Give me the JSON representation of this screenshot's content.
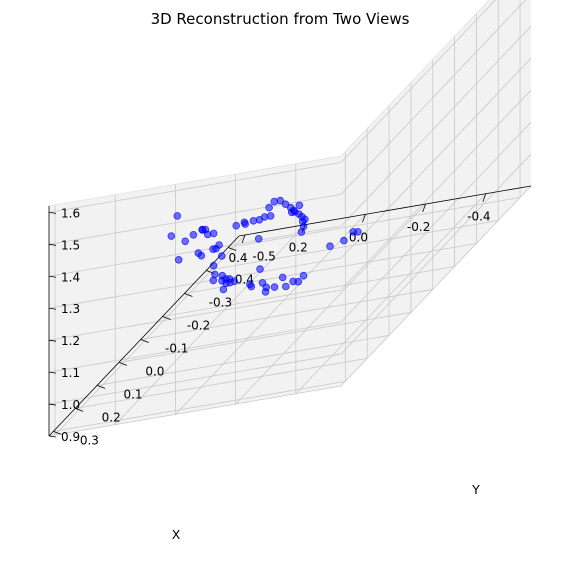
{
  "chart_data": {
    "type": "scatter",
    "projection": "3d",
    "title": "3D Reconstruction from Two Views",
    "xlabel": "X",
    "ylabel": "Y",
    "zlabel": "",
    "xlim": [
      -0.55,
      0.42
    ],
    "ylim": [
      -0.55,
      0.32
    ],
    "zlim": [
      0.9,
      1.62
    ],
    "xticks": [
      -0.4,
      -0.2,
      0.0,
      0.2,
      0.4
    ],
    "yticks": [
      -0.5,
      -0.4,
      -0.3,
      -0.2,
      -0.1,
      0.0,
      0.1,
      0.2,
      0.3
    ],
    "zticks": [
      0.9,
      1.0,
      1.1,
      1.2,
      1.3,
      1.4,
      1.5,
      1.6
    ],
    "grid": true,
    "marker_color": "#0000ff",
    "points": [
      {
        "x": -0.39,
        "y": 0.29,
        "z": 1.47
      },
      {
        "x": -0.36,
        "y": 0.27,
        "z": 1.44
      },
      {
        "x": -0.35,
        "y": 0.27,
        "z": 1.44
      },
      {
        "x": -0.28,
        "y": 0.27,
        "z": 1.44
      },
      {
        "x": -0.26,
        "y": 0.27,
        "z": 1.44
      },
      {
        "x": -0.25,
        "y": 0.28,
        "z": 1.44
      },
      {
        "x": -0.23,
        "y": 0.28,
        "z": 1.44
      },
      {
        "x": -0.21,
        "y": 0.29,
        "z": 1.44
      },
      {
        "x": -0.2,
        "y": 0.28,
        "z": 1.44
      },
      {
        "x": -0.18,
        "y": 0.29,
        "z": 1.44
      },
      {
        "x": -0.12,
        "y": 0.31,
        "z": 1.44
      },
      {
        "x": -0.1,
        "y": 0.31,
        "z": 1.44
      },
      {
        "x": -0.06,
        "y": 0.28,
        "z": 1.44
      },
      {
        "x": 0.03,
        "y": 0.27,
        "z": 1.49
      },
      {
        "x": 0.05,
        "y": 0.27,
        "z": 1.43
      },
      {
        "x": 0.04,
        "y": 0.25,
        "z": 1.34
      },
      {
        "x": 0.06,
        "y": 0.1,
        "z": 1.33
      },
      {
        "x": 0.07,
        "y": 0.1,
        "z": 1.33
      },
      {
        "x": 0.1,
        "y": 0.1,
        "z": 1.32
      },
      {
        "x": 0.12,
        "y": 0.11,
        "z": 1.31
      },
      {
        "x": 0.08,
        "y": 0.01,
        "z": 1.22
      },
      {
        "x": 0.09,
        "y": 0.01,
        "z": 1.21
      },
      {
        "x": 0.1,
        "y": 0.01,
        "z": 1.21
      },
      {
        "x": 0.11,
        "y": 0.05,
        "z": 1.22
      },
      {
        "x": 0.12,
        "y": 0.05,
        "z": 1.23
      },
      {
        "x": 0.1,
        "y": -0.03,
        "z": 1.16
      },
      {
        "x": 0.12,
        "y": -0.02,
        "z": 1.14
      },
      {
        "x": 0.13,
        "y": -0.04,
        "z": 1.1
      },
      {
        "x": 0.12,
        "y": -0.06,
        "z": 1.08
      },
      {
        "x": 0.15,
        "y": -0.06,
        "z": 1.07
      },
      {
        "x": 0.1,
        "y": -0.05,
        "z": 1.06
      },
      {
        "x": 0.05,
        "y": -0.09,
        "z": 1.02
      },
      {
        "x": 0.06,
        "y": -0.11,
        "z": 1.0
      },
      {
        "x": 0.03,
        "y": -0.12,
        "z": 1.0
      },
      {
        "x": 0.01,
        "y": -0.11,
        "z": 0.99
      },
      {
        "x": 0.02,
        "y": -0.12,
        "z": 0.97
      },
      {
        "x": -0.01,
        "y": -0.12,
        "z": 0.98
      },
      {
        "x": -0.04,
        "y": -0.13,
        "z": 0.97
      },
      {
        "x": -0.05,
        "y": -0.15,
        "z": 0.97
      },
      {
        "x": -0.06,
        "y": -0.16,
        "z": 0.96
      },
      {
        "x": -0.07,
        "y": -0.17,
        "z": 0.97
      },
      {
        "x": -0.03,
        "y": -0.13,
        "z": 1.0
      },
      {
        "x": 0.13,
        "y": -0.09,
        "z": 1.05
      },
      {
        "x": 0.15,
        "y": -0.1,
        "z": 1.04
      },
      {
        "x": 0.14,
        "y": -0.12,
        "z": 1.03
      },
      {
        "x": 0.16,
        "y": -0.12,
        "z": 1.0
      },
      {
        "x": 0.16,
        "y": -0.15,
        "z": 1.0
      },
      {
        "x": 0.16,
        "y": -0.17,
        "z": 0.99
      },
      {
        "x": 0.14,
        "y": -0.26,
        "z": 0.96
      },
      {
        "x": -0.15,
        "y": -0.05,
        "z": 1.18
      },
      {
        "x": -0.15,
        "y": -0.06,
        "z": 1.19
      },
      {
        "x": -0.14,
        "y": -0.07,
        "z": 1.2
      },
      {
        "x": -0.14,
        "y": -0.08,
        "z": 1.2
      },
      {
        "x": -0.13,
        "y": -0.08,
        "z": 1.21
      },
      {
        "x": -0.12,
        "y": -0.08,
        "z": 1.22
      },
      {
        "x": -0.11,
        "y": -0.07,
        "z": 1.24
      },
      {
        "x": -0.1,
        "y": -0.07,
        "z": 1.25
      },
      {
        "x": -0.09,
        "y": -0.06,
        "z": 1.27
      },
      {
        "x": -0.08,
        "y": -0.05,
        "z": 1.29
      },
      {
        "x": -0.06,
        "y": -0.05,
        "z": 1.29
      },
      {
        "x": -0.05,
        "y": -0.04,
        "z": 1.28
      },
      {
        "x": -0.03,
        "y": -0.02,
        "z": 1.2
      },
      {
        "x": -0.1,
        "y": -0.25,
        "z": 1.0
      },
      {
        "x": -0.11,
        "y": -0.3,
        "z": 0.98
      },
      {
        "x": -0.12,
        "y": -0.35,
        "z": 0.97
      },
      {
        "x": -0.09,
        "y": -0.37,
        "z": 0.96
      }
    ]
  }
}
